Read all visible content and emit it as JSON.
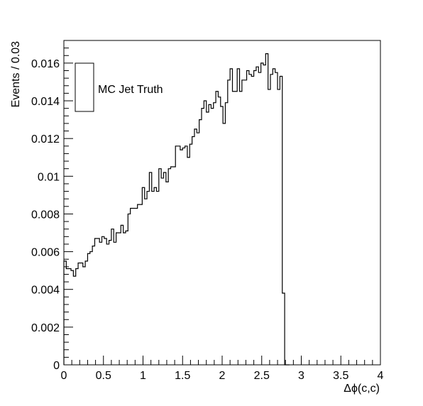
{
  "chart_data": {
    "type": "histogram",
    "title": "",
    "xlabel": "Δϕ(c,c)",
    "ylabel": "Events / 0.03",
    "xlim": [
      0,
      4
    ],
    "ylim": [
      0,
      0.0172
    ],
    "x_ticks": [
      0,
      0.5,
      1,
      1.5,
      2,
      2.5,
      3,
      3.5,
      4
    ],
    "x_tick_labels": [
      "0",
      "0.5",
      "1",
      "1.5",
      "2",
      "2.5",
      "3",
      "3.5",
      "4"
    ],
    "y_ticks": [
      0,
      0.002,
      0.004,
      0.006,
      0.008,
      0.01,
      0.012,
      0.014,
      0.016
    ],
    "y_tick_labels": [
      "0",
      "0.002",
      "0.004",
      "0.006",
      "0.008",
      "0.01",
      "0.012",
      "0.014",
      "0.016"
    ],
    "grid": false,
    "legend_position": "top-left",
    "series": [
      {
        "name": "MC Jet Truth",
        "color": "#000000",
        "bin_width": 0.03,
        "x_start": 0,
        "values": [
          0.0055,
          0.0051,
          0.0051,
          0.005,
          0.0047,
          0.0051,
          0.0054,
          0.0054,
          0.0052,
          0.0055,
          0.0059,
          0.006,
          0.0063,
          0.0067,
          0.0067,
          0.0065,
          0.0068,
          0.0067,
          0.0064,
          0.0066,
          0.0072,
          0.0065,
          0.007,
          0.007,
          0.0074,
          0.007,
          0.0071,
          0.008,
          0.0083,
          0.0083,
          0.0083,
          0.0085,
          0.0085,
          0.0094,
          0.0088,
          0.0092,
          0.0102,
          0.0092,
          0.0094,
          0.0092,
          0.0104,
          0.0099,
          0.0102,
          0.0097,
          0.0104,
          0.0105,
          0.0105,
          0.0116,
          0.0116,
          0.0114,
          0.0115,
          0.0116,
          0.011,
          0.0117,
          0.0121,
          0.0125,
          0.0123,
          0.013,
          0.0136,
          0.014,
          0.0134,
          0.0138,
          0.0136,
          0.0139,
          0.0145,
          0.0142,
          0.0137,
          0.0128,
          0.0139,
          0.0151,
          0.0157,
          0.0145,
          0.0145,
          0.0157,
          0.0145,
          0.0151,
          0.0151,
          0.0156,
          0.0154,
          0.0153,
          0.0156,
          0.0158,
          0.0155,
          0.016,
          0.0159,
          0.0165,
          0.0146,
          0.0154,
          0.0157,
          0.0155,
          0.0146,
          0.0153,
          0.0038,
          0.0,
          0.0
        ]
      }
    ]
  }
}
